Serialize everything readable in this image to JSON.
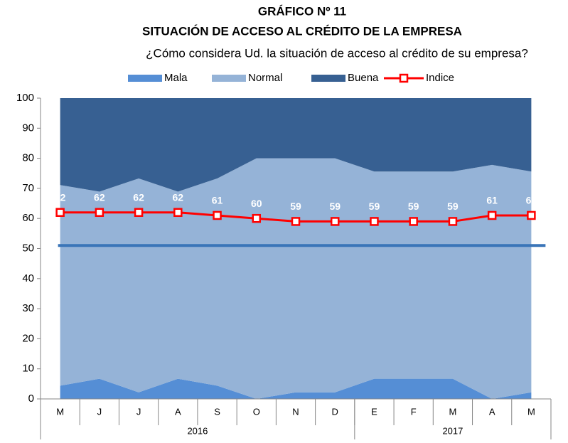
{
  "chart_data": {
    "type": "area",
    "title": "GRÁFICO Nº 11",
    "subtitle": "SITUACIÓN DE ACCESO AL CRÉDITO DE LA EMPRESA",
    "question": "¿Cómo considera Ud. la situación de acceso al crédito de su empresa?",
    "categories": [
      "M",
      "J",
      "J",
      "A",
      "S",
      "O",
      "N",
      "D",
      "E",
      "F",
      "M",
      "A",
      "M"
    ],
    "groups": [
      {
        "label": "2016",
        "count": 8
      },
      {
        "label": "2017",
        "count": 5
      }
    ],
    "stacked": true,
    "series": [
      {
        "name": "Mala",
        "color": "#558ed5",
        "values": [
          4.4,
          6.7,
          2.2,
          6.7,
          4.4,
          0,
          2.2,
          2.2,
          6.7,
          6.7,
          6.7,
          0,
          2.2
        ]
      },
      {
        "name": "Normal",
        "color": "#95b3d7",
        "values": [
          66.7,
          62.2,
          71.1,
          62.2,
          68.9,
          80,
          77.8,
          77.8,
          68.9,
          68.9,
          68.9,
          77.8,
          73.4
        ]
      },
      {
        "name": "Buena",
        "color": "#376092",
        "values": [
          28.9,
          31.1,
          26.7,
          31.1,
          26.7,
          20,
          20,
          20,
          24.4,
          24.4,
          24.4,
          22.2,
          24.4
        ]
      },
      {
        "name": "Indice",
        "type": "line",
        "color": "#ff0000",
        "values": [
          62,
          62,
          62,
          62,
          61,
          60,
          59,
          59,
          59,
          59,
          59,
          61,
          61
        ]
      }
    ],
    "reference_line": {
      "value": 51,
      "color": "#3a75b8"
    },
    "ylim": [
      0,
      100
    ],
    "yticks": [
      0,
      10,
      20,
      30,
      40,
      50,
      60,
      70,
      80,
      90,
      100
    ],
    "legend": "top"
  }
}
